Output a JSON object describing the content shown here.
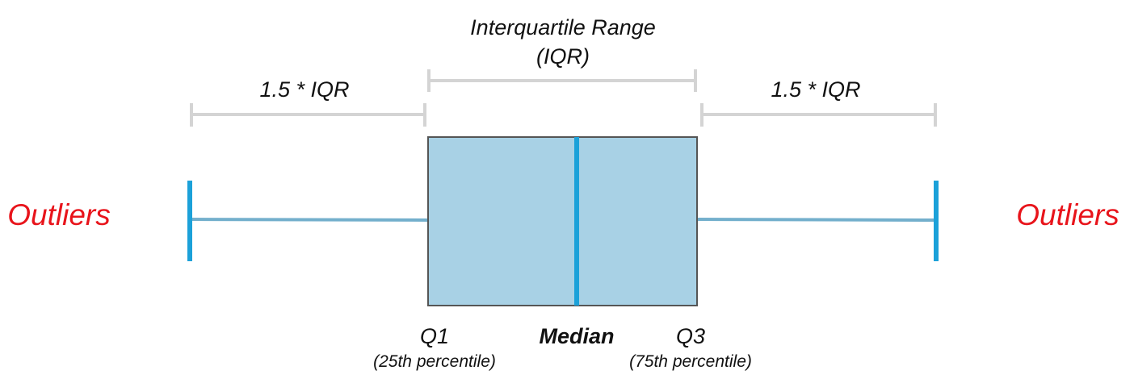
{
  "colors": {
    "box_fill": "#a8d1e5",
    "box_stroke": "#555555",
    "median_line": "#1ba1d9",
    "whisker_line": "#73afcc",
    "whisker_cap": "#1ba1d9",
    "bracket": "#d4d4d4",
    "outliers_text": "#e8141b",
    "text": "#111111"
  },
  "labels": {
    "iqr_title": "Interquartile Range",
    "iqr_abbrev": "(IQR)",
    "left_range": "1.5 * IQR",
    "right_range": "1.5 * IQR",
    "outliers_left": "Outliers",
    "outliers_right": "Outliers",
    "q1": "Q1",
    "q1_sub": "(25th percentile)",
    "median": "Median",
    "q3": "Q3",
    "q3_sub": "(75th percentile)"
  }
}
